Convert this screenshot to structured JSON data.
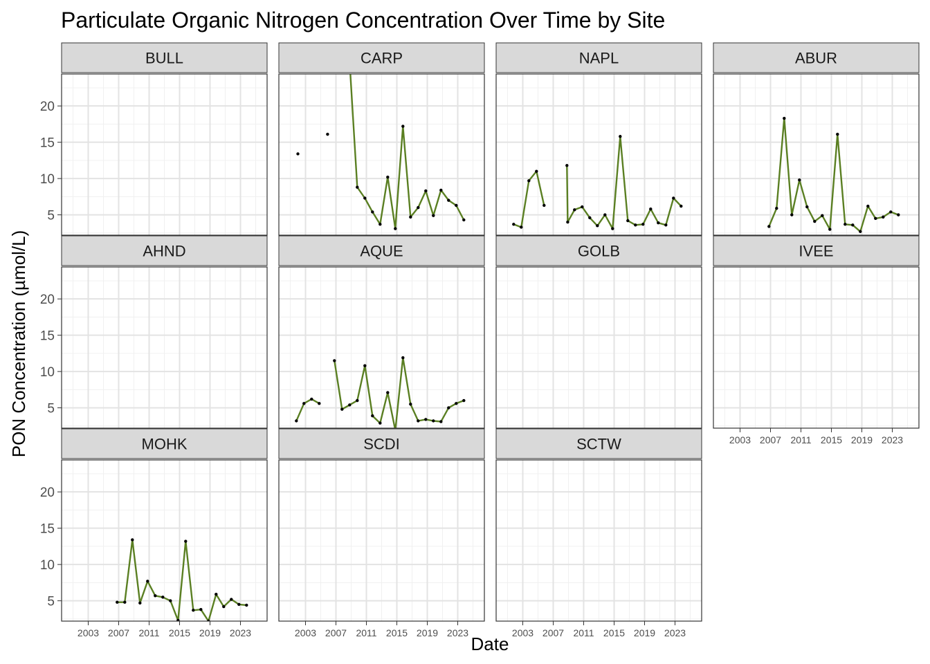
{
  "chart_data": {
    "type": "line",
    "title": "Particulate Organic Nitrogen Concentration Over Time by Site",
    "xlabel": "Date",
    "ylabel": "PON Concentration (µmol/L)",
    "xlim": [
      1999.5,
      2026.5
    ],
    "ylim": [
      2.2,
      24.4
    ],
    "x_ticks": [
      2003,
      2007,
      2011,
      2015,
      2019,
      2023
    ],
    "y_ticks": [
      5,
      10,
      15,
      20
    ],
    "grid": true,
    "layout": "facet-wrap-4-columns",
    "line_color": "#5a7f22",
    "point_color": "#000000",
    "strip_fill": "#d9d9d9",
    "facets": [
      {
        "site": "BULL",
        "segments": []
      },
      {
        "site": "CARP",
        "segments": [
          [
            [
              2002.0,
              13.4
            ]
          ],
          [
            [
              2005.9,
              16.1
            ]
          ],
          [
            [
              2008.8,
              26.0
            ],
            [
              2009.8,
              8.8
            ],
            [
              2010.8,
              7.3
            ],
            [
              2011.8,
              5.4
            ],
            [
              2012.8,
              3.7
            ],
            [
              2013.8,
              10.2
            ],
            [
              2014.8,
              3.1
            ],
            [
              2015.8,
              17.2
            ],
            [
              2016.8,
              4.7
            ],
            [
              2017.8,
              6.0
            ],
            [
              2018.8,
              8.3
            ],
            [
              2019.8,
              4.9
            ],
            [
              2020.8,
              8.4
            ],
            [
              2021.8,
              7.0
            ],
            [
              2022.8,
              6.3
            ],
            [
              2023.8,
              4.3
            ]
          ]
        ]
      },
      {
        "site": "NAPL",
        "segments": [
          [
            [
              2001.8,
              3.7
            ],
            [
              2002.8,
              3.3
            ],
            [
              2003.8,
              9.7
            ],
            [
              2004.8,
              11.0
            ],
            [
              2005.8,
              6.3
            ]
          ],
          [
            [
              2008.8,
              11.8
            ],
            [
              2008.9,
              4.0
            ],
            [
              2009.8,
              5.7
            ],
            [
              2010.8,
              6.1
            ],
            [
              2011.8,
              4.6
            ],
            [
              2012.8,
              3.5
            ],
            [
              2013.8,
              5.0
            ],
            [
              2014.8,
              3.1
            ],
            [
              2015.8,
              15.8
            ],
            [
              2016.8,
              4.2
            ],
            [
              2017.8,
              3.6
            ],
            [
              2018.8,
              3.7
            ],
            [
              2019.8,
              5.8
            ],
            [
              2020.8,
              3.9
            ],
            [
              2021.8,
              3.6
            ],
            [
              2022.8,
              7.3
            ],
            [
              2023.8,
              6.2
            ]
          ]
        ]
      },
      {
        "site": "ABUR",
        "segments": [
          [
            [
              2006.8,
              3.4
            ],
            [
              2007.8,
              5.9
            ],
            [
              2008.8,
              18.3
            ],
            [
              2009.8,
              5.0
            ],
            [
              2010.8,
              9.8
            ],
            [
              2011.8,
              6.1
            ],
            [
              2012.8,
              4.1
            ],
            [
              2013.8,
              4.9
            ],
            [
              2014.8,
              3.0
            ],
            [
              2015.8,
              16.1
            ],
            [
              2016.8,
              3.7
            ],
            [
              2017.8,
              3.6
            ],
            [
              2018.8,
              2.7
            ],
            [
              2019.8,
              6.2
            ],
            [
              2020.8,
              4.5
            ],
            [
              2021.8,
              4.7
            ],
            [
              2022.8,
              5.4
            ],
            [
              2023.8,
              5.0
            ]
          ]
        ]
      },
      {
        "site": "AHND",
        "segments": []
      },
      {
        "site": "AQUE",
        "segments": [
          [
            [
              2001.8,
              3.2
            ],
            [
              2002.8,
              5.6
            ],
            [
              2003.8,
              6.2
            ],
            [
              2004.8,
              5.6
            ]
          ],
          [
            [
              2006.8,
              11.5
            ],
            [
              2007.8,
              4.8
            ],
            [
              2008.8,
              5.4
            ],
            [
              2009.8,
              6.0
            ],
            [
              2010.8,
              10.8
            ],
            [
              2011.8,
              3.9
            ],
            [
              2012.8,
              2.9
            ],
            [
              2013.8,
              7.1
            ],
            [
              2014.8,
              1.9
            ],
            [
              2015.8,
              11.9
            ],
            [
              2016.8,
              5.5
            ],
            [
              2017.8,
              3.2
            ],
            [
              2018.8,
              3.4
            ],
            [
              2019.8,
              3.2
            ],
            [
              2020.8,
              3.1
            ],
            [
              2021.8,
              5.0
            ],
            [
              2022.8,
              5.6
            ],
            [
              2023.8,
              6.0
            ]
          ]
        ]
      },
      {
        "site": "GOLB",
        "segments": []
      },
      {
        "site": "IVEE",
        "segments": []
      },
      {
        "site": "MOHK",
        "segments": [
          [
            [
              2006.8,
              4.8
            ],
            [
              2007.8,
              4.8
            ],
            [
              2008.8,
              13.4
            ],
            [
              2009.8,
              4.7
            ],
            [
              2010.8,
              7.7
            ],
            [
              2011.8,
              5.7
            ],
            [
              2012.8,
              5.5
            ],
            [
              2013.8,
              5.0
            ],
            [
              2014.8,
              2.3
            ],
            [
              2015.8,
              13.2
            ],
            [
              2016.8,
              3.7
            ],
            [
              2017.8,
              3.8
            ],
            [
              2018.8,
              2.2
            ],
            [
              2019.8,
              5.9
            ],
            [
              2020.8,
              4.2
            ],
            [
              2021.8,
              5.2
            ],
            [
              2022.8,
              4.5
            ],
            [
              2023.8,
              4.4
            ]
          ]
        ]
      },
      {
        "site": "SCDI",
        "segments": []
      },
      {
        "site": "SCTW",
        "segments": []
      }
    ]
  }
}
